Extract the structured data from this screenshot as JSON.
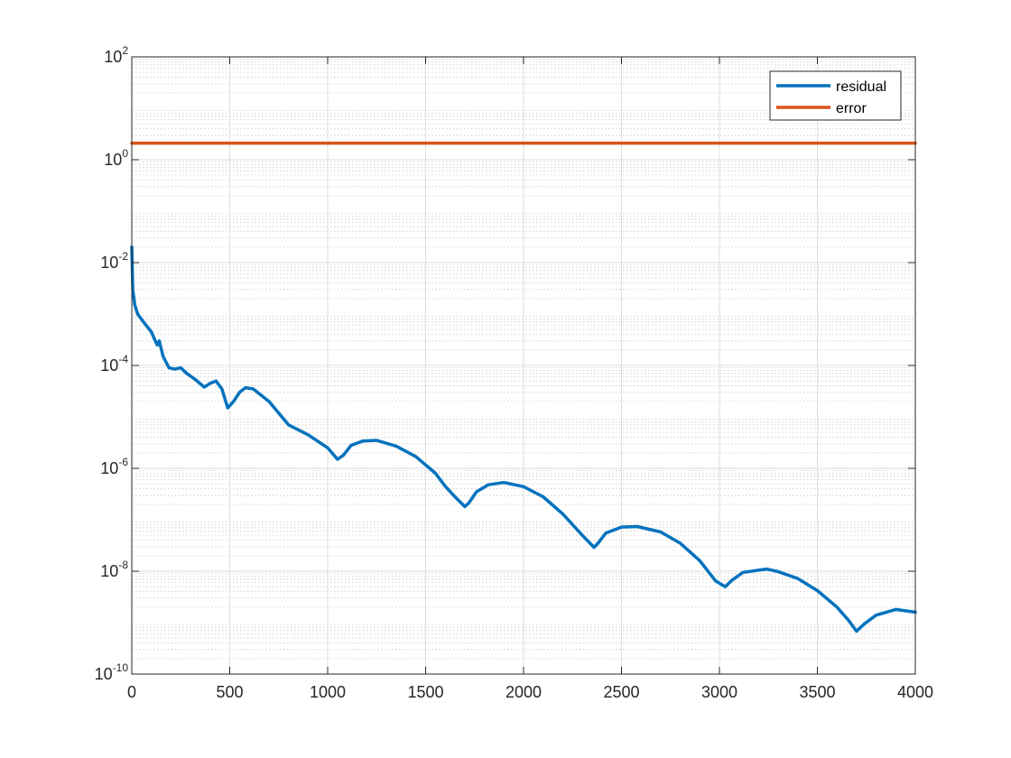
{
  "chart_data": {
    "type": "line",
    "title": "",
    "xlabel": "",
    "ylabel": "",
    "xlim": [
      0,
      4000
    ],
    "ylim": [
      1e-10,
      100
    ],
    "yscale": "log",
    "x_ticks": [
      0,
      500,
      1000,
      1500,
      2000,
      2500,
      3000,
      3500,
      4000
    ],
    "x_tick_labels": [
      "0",
      "500",
      "1000",
      "1500",
      "2000",
      "2500",
      "3000",
      "3500",
      "4000"
    ],
    "y_ticks": [
      1e-10,
      1e-08,
      1e-06,
      0.0001,
      0.01,
      1,
      100
    ],
    "y_tick_labels": [
      {
        "base": "10",
        "exp": "-10"
      },
      {
        "base": "10",
        "exp": "-8"
      },
      {
        "base": "10",
        "exp": "-6"
      },
      {
        "base": "10",
        "exp": "-4"
      },
      {
        "base": "10",
        "exp": "-2"
      },
      {
        "base": "10",
        "exp": "0"
      },
      {
        "base": "10",
        "exp": "2"
      }
    ],
    "grid": true,
    "minor_grid": true,
    "legend_position": "top-right",
    "series": [
      {
        "name": "residual",
        "color": "#0072BD",
        "x": [
          0,
          5,
          15,
          30,
          60,
          100,
          120,
          130,
          140,
          160,
          190,
          220,
          250,
          280,
          320,
          370,
          400,
          430,
          460,
          490,
          520,
          550,
          580,
          620,
          700,
          800,
          900,
          1000,
          1050,
          1080,
          1120,
          1180,
          1250,
          1350,
          1450,
          1550,
          1600,
          1650,
          1700,
          1720,
          1760,
          1820,
          1900,
          2000,
          2100,
          2200,
          2300,
          2360,
          2380,
          2420,
          2500,
          2580,
          2700,
          2800,
          2900,
          2980,
          3030,
          3060,
          3120,
          3240,
          3300,
          3400,
          3500,
          3600,
          3660,
          3700,
          3740,
          3800,
          3900,
          4000
        ],
        "values": [
          0.02,
          0.003,
          0.0015,
          0.001,
          0.0007,
          0.00045,
          0.0003,
          0.00025,
          0.0003,
          0.00015,
          9e-05,
          8.5e-05,
          9e-05,
          7e-05,
          5.5e-05,
          3.8e-05,
          4.5e-05,
          5e-05,
          3.5e-05,
          1.5e-05,
          2e-05,
          3e-05,
          3.7e-05,
          3.5e-05,
          2e-05,
          7e-06,
          4.5e-06,
          2.5e-06,
          1.5e-06,
          1.8e-06,
          2.8e-06,
          3.4e-06,
          3.5e-06,
          2.7e-06,
          1.7e-06,
          8e-07,
          4.5e-07,
          2.8e-07,
          1.8e-07,
          2.1e-07,
          3.5e-07,
          4.8e-07,
          5.3e-07,
          4.4e-07,
          2.8e-07,
          1.3e-07,
          5e-08,
          2.9e-08,
          3.5e-08,
          5.5e-08,
          7.2e-08,
          7.4e-08,
          5.8e-08,
          3.5e-08,
          1.6e-08,
          6.5e-09,
          5e-09,
          6.5e-09,
          9.5e-09,
          1.1e-08,
          9.8e-09,
          7.2e-09,
          4.2e-09,
          2e-09,
          1.1e-09,
          6.8e-10,
          9.5e-10,
          1.4e-09,
          1.8e-09,
          1.6e-09
        ]
      },
      {
        "name": "error",
        "color": "#D95319",
        "x": [
          0,
          4000
        ],
        "values": [
          2.1,
          2.1
        ]
      }
    ]
  }
}
